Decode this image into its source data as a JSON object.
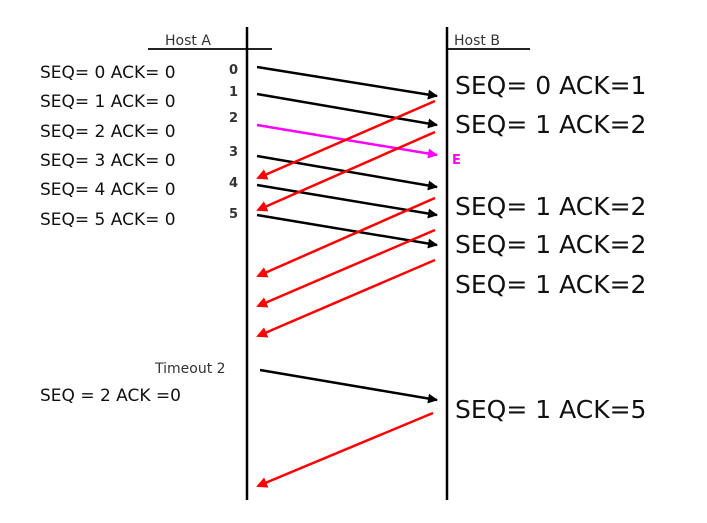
{
  "colors": {
    "data": "#000000",
    "ack": "#ff0000",
    "lost": "#ff00ff",
    "timeline": "#000000"
  },
  "hosts": {
    "a": "Host A",
    "b": "Host B"
  },
  "host_a_labels": [
    "SEQ= 0 ACK= 0",
    "SEQ= 1 ACK= 0",
    "SEQ= 2 ACK= 0",
    "SEQ= 3 ACK= 0",
    "SEQ= 4 ACK= 0",
    "SEQ= 5 ACK= 0",
    "SEQ = 2 ACK =0"
  ],
  "packet_numbers": [
    "0",
    "1",
    "2",
    "3",
    "4",
    "5"
  ],
  "timeout_label": "Timeout 2",
  "error_mark": "E",
  "host_b_labels": [
    "SEQ= 0 ACK=1",
    "SEQ= 1 ACK=2",
    "SEQ= 1 ACK=2",
    "SEQ= 1 ACK=2",
    "SEQ= 1 ACK=2",
    "SEQ= 1 ACK=5"
  ]
}
